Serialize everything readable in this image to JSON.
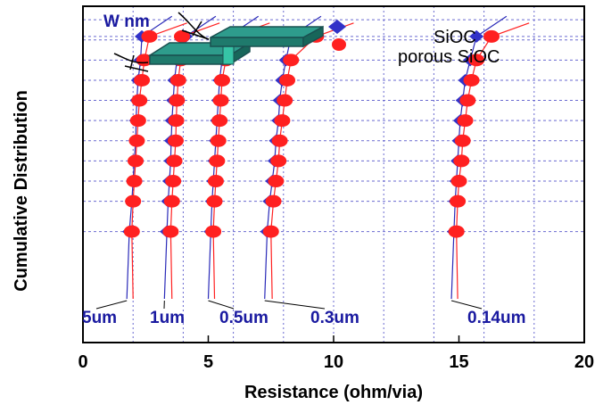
{
  "chart_data": {
    "type": "scatter",
    "title": "",
    "xlabel": "Resistance (ohm/via)",
    "ylabel": "Cumulative Distribution",
    "xlim": [
      0,
      20
    ],
    "x_ticks": [
      "0",
      "5",
      "10",
      "15",
      "20"
    ],
    "x_vgrid": [
      2,
      4,
      6,
      8,
      10,
      12,
      14,
      16,
      18
    ],
    "grid": true,
    "legend_position": "top-right",
    "legend": [
      {
        "name": "SiOC",
        "marker": "diamond",
        "color": "#3232c8"
      },
      {
        "name": "porous SiOC",
        "marker": "circle",
        "color": "#ff2020"
      }
    ],
    "inset_label": "W nm",
    "levels": [
      0.33,
      0.42,
      0.48,
      0.54,
      0.6,
      0.66,
      0.72,
      0.78,
      0.84,
      0.91
    ],
    "groups": [
      {
        "label": "5um",
        "sioc": [
          1.85,
          1.95,
          2.0,
          2.05,
          2.1,
          2.12,
          2.15,
          2.2,
          2.3,
          2.35
        ],
        "porous": [
          1.95,
          2.0,
          2.05,
          2.1,
          2.15,
          2.2,
          2.25,
          2.35,
          2.45,
          2.65
        ]
      },
      {
        "label": "1um",
        "sioc": [
          3.35,
          3.4,
          3.45,
          3.5,
          3.52,
          3.55,
          3.6,
          3.65,
          3.75,
          4.1
        ],
        "porous": [
          3.5,
          3.55,
          3.6,
          3.65,
          3.7,
          3.72,
          3.75,
          3.8,
          3.9,
          3.95
        ]
      },
      {
        "label": "0.5um",
        "sioc": [
          5.1,
          5.15,
          5.2,
          5.25,
          5.3,
          5.35,
          5.4,
          5.45,
          5.55,
          5.8
        ],
        "porous": [
          5.2,
          5.25,
          5.3,
          5.35,
          5.4,
          5.45,
          5.5,
          5.55,
          5.7,
          5.95
        ]
      },
      {
        "label": "0.3um",
        "sioc": [
          7.35,
          7.45,
          7.55,
          7.65,
          7.7,
          7.8,
          7.85,
          7.95,
          8.1,
          8.3
        ],
        "porous": [
          7.5,
          7.6,
          7.7,
          7.8,
          7.85,
          7.95,
          8.05,
          8.15,
          8.3,
          9.3
        ]
      },
      {
        "label": "0.14um",
        "sioc": [
          14.8,
          14.85,
          14.9,
          14.95,
          15.0,
          15.05,
          15.15,
          15.25,
          15.45,
          15.7
        ],
        "porous": [
          14.9,
          14.95,
          15.0,
          15.1,
          15.15,
          15.25,
          15.35,
          15.5,
          15.7,
          16.3
        ]
      }
    ]
  }
}
